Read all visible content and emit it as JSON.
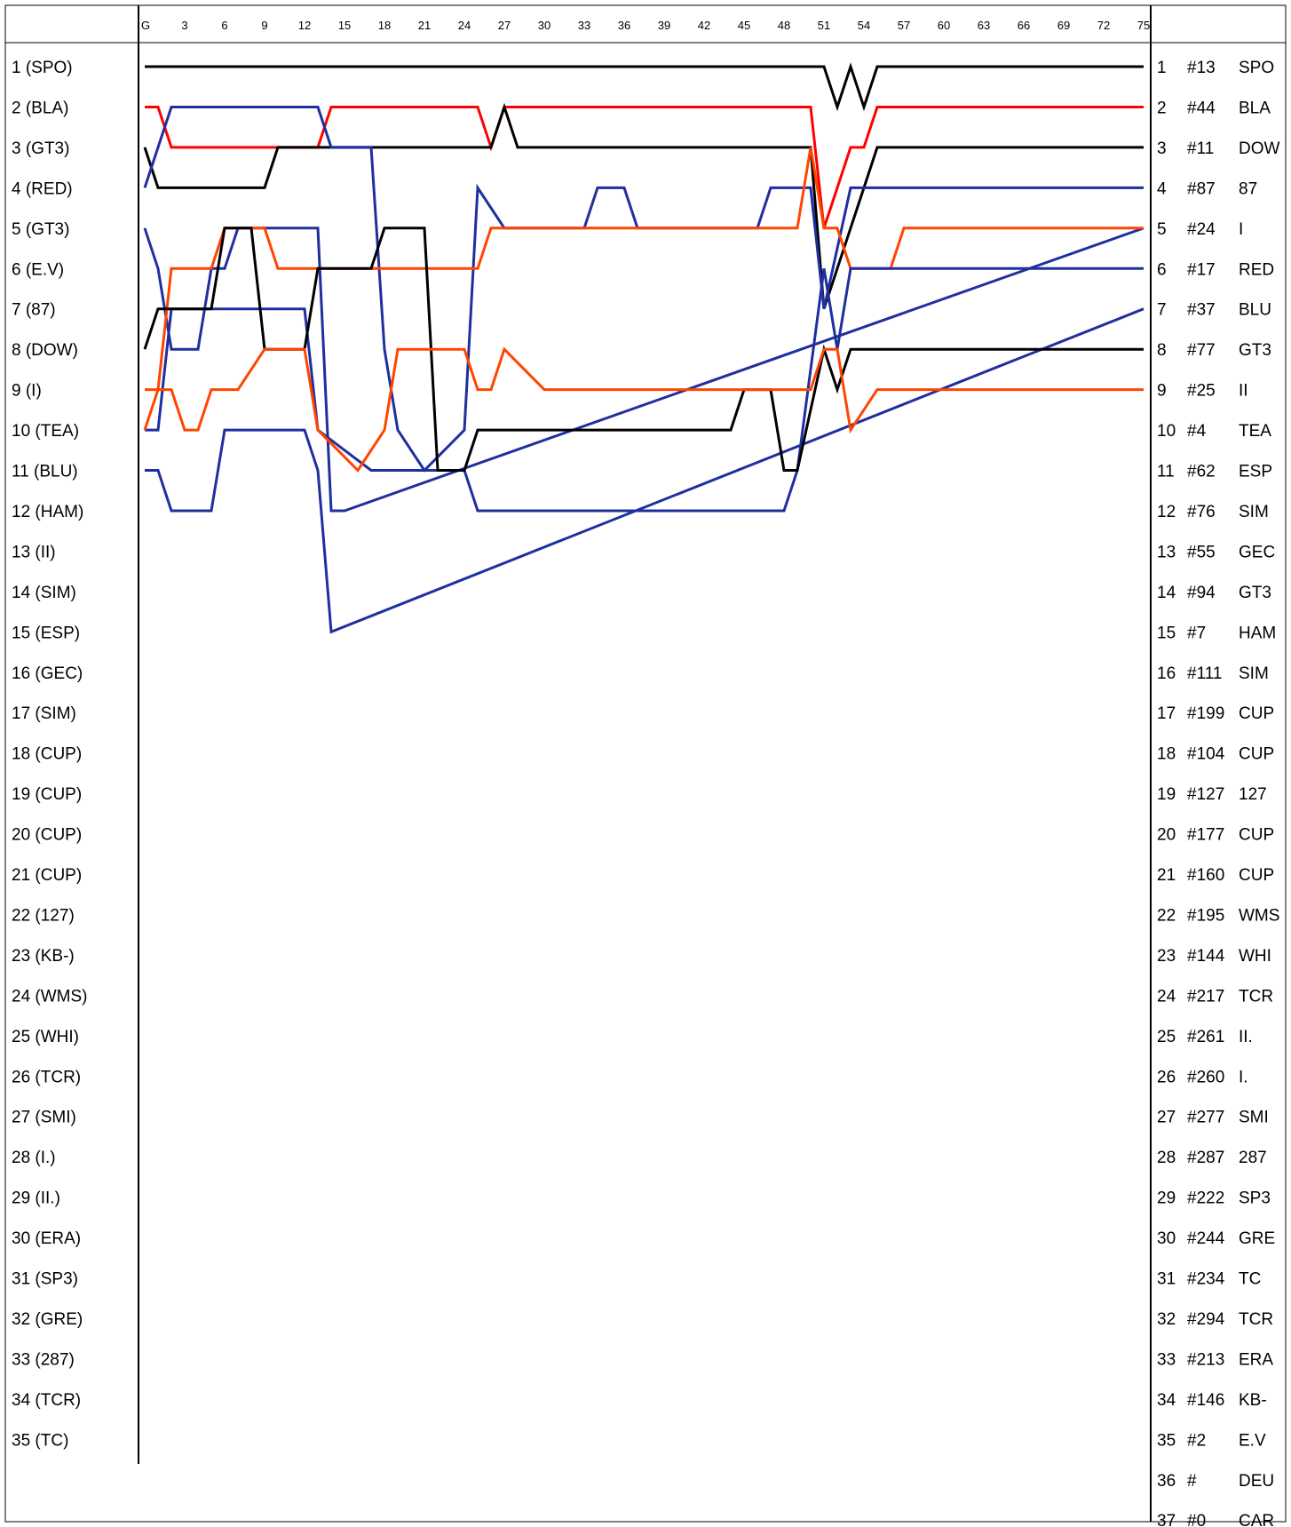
{
  "chart_data": {
    "type": "line",
    "title": "",
    "xlabel": "",
    "ylabel": "",
    "x_ticks": [
      "G",
      "3",
      "6",
      "9",
      "12",
      "15",
      "18",
      "21",
      "24",
      "27",
      "30",
      "33",
      "36",
      "39",
      "42",
      "45",
      "48",
      "51",
      "54",
      "57",
      "60",
      "63",
      "66",
      "69",
      "72",
      "75"
    ],
    "xlim": [
      0,
      75
    ],
    "ylim": [
      1,
      37
    ],
    "y_reversed": true,
    "grid": false,
    "start_labels": [
      "1 (SPO)",
      "2 (BLA)",
      "3 (GT3)",
      "4 (RED)",
      "5 (GT3)",
      "6 (E.V)",
      "7 (87)",
      "8 (DOW)",
      "9 (I)",
      "10 (TEA)",
      "11 (BLU)",
      "12 (HAM)",
      "13 (II)",
      "14 (SIM)",
      "15 (ESP)",
      "16 (GEC)",
      "17 (SIM)",
      "18 (CUP)",
      "19 (CUP)",
      "20 (CUP)",
      "21 (CUP)",
      "22 (127)",
      "23 (KB-)",
      "24 (WMS)",
      "25 (WHI)",
      "26 (TCR)",
      "27 (SMI)",
      "28 (I.)",
      "29 (II.)",
      "30 (ERA)",
      "31 (SP3)",
      "32 (GRE)",
      "33 (287)",
      "34 (TCR)",
      "35 (TC)"
    ],
    "finish_labels": [
      {
        "pos": "1",
        "num": "#13",
        "team": "SPO"
      },
      {
        "pos": "2",
        "num": "#44",
        "team": "BLA"
      },
      {
        "pos": "3",
        "num": "#11",
        "team": "DOW"
      },
      {
        "pos": "4",
        "num": "#87",
        "team": "87"
      },
      {
        "pos": "5",
        "num": "#24",
        "team": "I"
      },
      {
        "pos": "6",
        "num": "#17",
        "team": "RED"
      },
      {
        "pos": "7",
        "num": "#37",
        "team": "BLU"
      },
      {
        "pos": "8",
        "num": "#77",
        "team": "GT3"
      },
      {
        "pos": "9",
        "num": "#25",
        "team": "II"
      },
      {
        "pos": "10",
        "num": "#4",
        "team": "TEA"
      },
      {
        "pos": "11",
        "num": "#62",
        "team": "ESP"
      },
      {
        "pos": "12",
        "num": "#76",
        "team": "SIM"
      },
      {
        "pos": "13",
        "num": "#55",
        "team": "GEC"
      },
      {
        "pos": "14",
        "num": "#94",
        "team": "GT3"
      },
      {
        "pos": "15",
        "num": "#7",
        "team": "HAM"
      },
      {
        "pos": "16",
        "num": "#111",
        "team": "SIM"
      },
      {
        "pos": "17",
        "num": "#199",
        "team": "CUP"
      },
      {
        "pos": "18",
        "num": "#104",
        "team": "CUP"
      },
      {
        "pos": "19",
        "num": "#127",
        "team": "127"
      },
      {
        "pos": "20",
        "num": "#177",
        "team": "CUP"
      },
      {
        "pos": "21",
        "num": "#160",
        "team": "CUP"
      },
      {
        "pos": "22",
        "num": "#195",
        "team": "WMS"
      },
      {
        "pos": "23",
        "num": "#144",
        "team": "WHI"
      },
      {
        "pos": "24",
        "num": "#217",
        "team": "TCR"
      },
      {
        "pos": "25",
        "num": "#261",
        "team": "II."
      },
      {
        "pos": "26",
        "num": "#260",
        "team": "I."
      },
      {
        "pos": "27",
        "num": "#277",
        "team": "SMI"
      },
      {
        "pos": "28",
        "num": "#287",
        "team": "287"
      },
      {
        "pos": "29",
        "num": "#222",
        "team": "SP3"
      },
      {
        "pos": "30",
        "num": "#244",
        "team": "GRE"
      },
      {
        "pos": "31",
        "num": "#234",
        "team": "TC"
      },
      {
        "pos": "32",
        "num": "#294",
        "team": "TCR"
      },
      {
        "pos": "33",
        "num": "#213",
        "team": "ERA"
      },
      {
        "pos": "34",
        "num": "#146",
        "team": "KB-"
      },
      {
        "pos": "35",
        "num": "#2",
        "team": "E.V"
      },
      {
        "pos": "36",
        "num": "#",
        "team": "DEU"
      },
      {
        "pos": "37",
        "num": "#0",
        "team": "CAR"
      }
    ],
    "series": [
      {
        "color": "#000000",
        "points": [
          [
            0,
            1
          ],
          [
            51,
            1
          ],
          [
            52,
            2
          ],
          [
            53,
            1
          ],
          [
            54,
            2
          ],
          [
            55,
            1
          ],
          [
            75,
            1
          ]
        ]
      },
      {
        "color": "#ff0000",
        "points": [
          [
            0,
            2
          ],
          [
            1,
            2
          ],
          [
            2,
            3
          ],
          [
            13,
            3
          ],
          [
            14,
            2
          ],
          [
            25,
            2
          ],
          [
            26,
            3
          ],
          [
            27,
            2
          ],
          [
            50,
            2
          ],
          [
            51,
            5
          ],
          [
            52,
            4
          ],
          [
            53,
            3
          ],
          [
            54,
            3
          ],
          [
            55,
            2
          ],
          [
            75,
            2
          ]
        ]
      },
      {
        "color": "#000000",
        "points": [
          [
            0,
            3
          ],
          [
            1,
            4
          ],
          [
            9,
            4
          ],
          [
            10,
            3
          ],
          [
            18,
            3
          ],
          [
            19,
            3
          ],
          [
            20,
            3
          ],
          [
            21,
            3
          ],
          [
            26,
            3
          ],
          [
            27,
            2
          ],
          [
            28,
            3
          ],
          [
            29,
            3
          ],
          [
            50,
            3
          ],
          [
            51,
            7
          ],
          [
            53,
            5
          ],
          [
            54,
            4
          ],
          [
            55,
            3
          ],
          [
            75,
            3
          ]
        ]
      },
      {
        "color": "#1f2f9e",
        "points": [
          [
            0,
            4
          ],
          [
            1,
            3
          ],
          [
            2,
            2
          ],
          [
            13,
            2
          ],
          [
            14,
            3
          ],
          [
            17,
            3
          ],
          [
            18,
            8
          ],
          [
            19,
            10
          ],
          [
            21,
            11
          ],
          [
            24,
            10
          ],
          [
            25,
            4
          ],
          [
            27,
            5
          ],
          [
            33,
            5
          ],
          [
            34,
            4
          ],
          [
            36,
            4
          ],
          [
            37,
            5
          ],
          [
            46,
            5
          ],
          [
            47,
            4
          ],
          [
            50,
            4
          ],
          [
            51,
            7
          ],
          [
            53,
            4
          ],
          [
            55,
            4
          ],
          [
            75,
            4
          ]
        ]
      },
      {
        "color": "#1f2f9e",
        "points": [
          [
            0,
            5
          ],
          [
            1,
            6
          ],
          [
            2,
            8
          ],
          [
            4,
            8
          ],
          [
            5,
            6
          ],
          [
            6,
            6
          ],
          [
            7,
            5
          ],
          [
            13,
            5
          ],
          [
            14,
            12
          ],
          [
            15,
            12
          ],
          [
            75,
            5
          ]
        ]
      },
      {
        "color": "#ff4500",
        "points": [
          [
            0,
            9
          ],
          [
            1,
            9
          ],
          [
            2,
            6
          ],
          [
            5,
            6
          ],
          [
            6,
            5
          ],
          [
            9,
            5
          ],
          [
            10,
            6
          ],
          [
            25,
            6
          ],
          [
            26,
            5
          ],
          [
            49,
            5
          ],
          [
            50,
            3
          ],
          [
            51,
            5
          ],
          [
            52,
            5
          ],
          [
            53,
            6
          ],
          [
            56,
            6
          ],
          [
            57,
            5
          ],
          [
            75,
            5
          ]
        ]
      },
      {
        "color": "#1f2f9e",
        "points": [
          [
            0,
            10
          ],
          [
            1,
            10
          ],
          [
            2,
            7
          ],
          [
            6,
            7
          ],
          [
            7,
            7
          ],
          [
            8,
            7
          ],
          [
            12,
            7
          ],
          [
            13,
            10
          ],
          [
            17,
            11
          ],
          [
            18,
            11
          ],
          [
            19,
            11
          ],
          [
            24,
            11
          ],
          [
            25,
            12
          ],
          [
            27,
            12
          ],
          [
            48,
            12
          ],
          [
            49,
            11
          ],
          [
            51,
            6
          ],
          [
            52,
            8
          ],
          [
            53,
            6
          ],
          [
            55,
            6
          ],
          [
            75,
            6
          ]
        ]
      },
      {
        "color": "#1f2f9e",
        "points": [
          [
            0,
            11
          ],
          [
            1,
            11
          ],
          [
            2,
            12
          ],
          [
            5,
            12
          ],
          [
            6,
            10
          ],
          [
            12,
            10
          ],
          [
            13,
            11
          ],
          [
            14,
            15
          ],
          [
            75,
            7
          ]
        ]
      },
      {
        "color": "#000000",
        "points": [
          [
            0,
            8
          ],
          [
            1,
            7
          ],
          [
            2,
            7
          ],
          [
            5,
            7
          ],
          [
            6,
            5
          ],
          [
            8,
            5
          ],
          [
            9,
            8
          ],
          [
            12,
            8
          ],
          [
            13,
            6
          ],
          [
            17,
            6
          ],
          [
            18,
            5
          ],
          [
            21,
            5
          ],
          [
            22,
            11
          ],
          [
            24,
            11
          ],
          [
            25,
            10
          ],
          [
            28,
            10
          ],
          [
            44,
            10
          ],
          [
            45,
            9
          ],
          [
            47,
            9
          ],
          [
            48,
            11
          ],
          [
            49,
            11
          ],
          [
            51,
            8
          ],
          [
            52,
            9
          ],
          [
            53,
            8
          ],
          [
            55,
            8
          ],
          [
            75,
            8
          ]
        ]
      },
      {
        "color": "#ff4500",
        "points": [
          [
            0,
            10
          ],
          [
            1,
            9
          ],
          [
            2,
            9
          ],
          [
            3,
            10
          ],
          [
            4,
            10
          ],
          [
            5,
            9
          ],
          [
            7,
            9
          ],
          [
            9,
            8
          ],
          [
            12,
            8
          ],
          [
            13,
            10
          ],
          [
            16,
            11
          ],
          [
            18,
            10
          ],
          [
            19,
            8
          ],
          [
            24,
            8
          ],
          [
            25,
            9
          ],
          [
            26,
            9
          ],
          [
            27,
            8
          ],
          [
            30,
            9
          ],
          [
            50,
            9
          ],
          [
            51,
            8
          ],
          [
            52,
            8
          ],
          [
            53,
            10
          ],
          [
            55,
            9
          ],
          [
            75,
            9
          ]
        ]
      }
    ]
  }
}
